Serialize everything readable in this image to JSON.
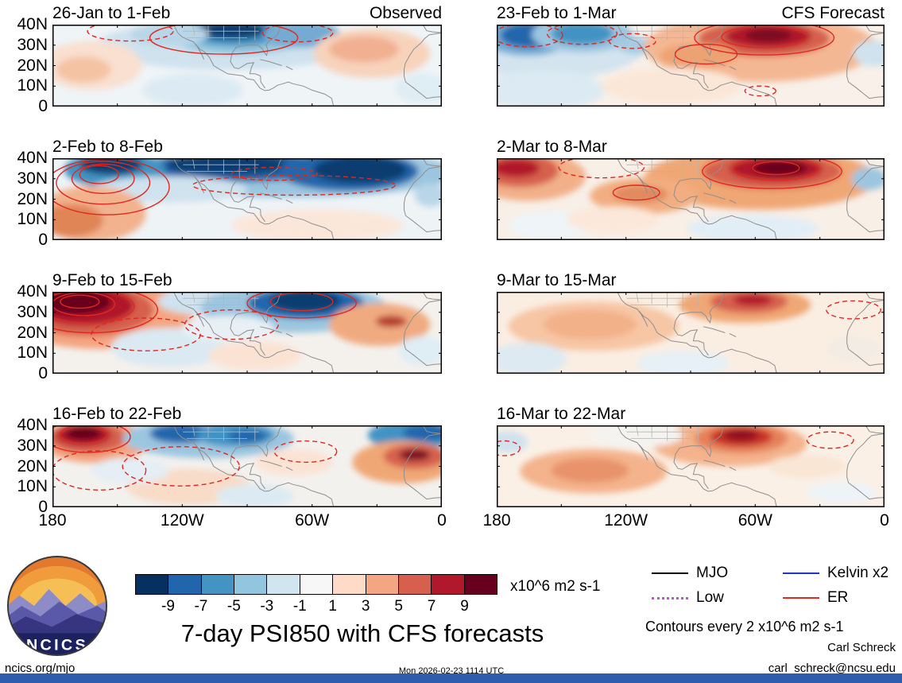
{
  "title": "7-day PSI850 with CFS forecasts",
  "logo": {
    "text": "NCICS"
  },
  "footer": {
    "site": "ncics.org/mjo",
    "timestamp": "Mon 2026-02-23 1114 UTC",
    "credit": "Carl Schreck",
    "email": "carl_schreck@ncsu.edu"
  },
  "colorbar": {
    "ticks": [
      "-9",
      "-7",
      "-5",
      "-3",
      "-1",
      "1",
      "3",
      "5",
      "7",
      "9"
    ],
    "colors": [
      "#053061",
      "#2166ac",
      "#4393c3",
      "#92c5de",
      "#d1e5f0",
      "#f7f7f7",
      "#fddbc7",
      "#f4a582",
      "#d6604d",
      "#b2182b",
      "#67001f"
    ],
    "units": "x10^6 m2 s-1"
  },
  "legend": {
    "note": "Contours every 2 x10^6 m2 s-1",
    "items": [
      {
        "label": "MJO",
        "color": "#000000",
        "style": "solid"
      },
      {
        "label": "Kelvin x2",
        "color": "#2233cc",
        "style": "solid"
      },
      {
        "label": "Low",
        "color": "#bb55cc",
        "style": "dotted"
      },
      {
        "label": "ER",
        "color": "#e02820",
        "style": "solid"
      }
    ]
  },
  "axes": {
    "y_ticks": [
      "40N",
      "30N",
      "20N",
      "10N",
      "0"
    ],
    "x_ticks": [
      "180",
      "120W",
      "60W",
      "0"
    ]
  },
  "chart_data": {
    "type": "heatmap",
    "subtype": "filled-contour anomaly maps with ER wave contours",
    "variable": "7-day PSI850 streamfunction anomaly",
    "units": "x10^6 m2 s-1",
    "levels": [
      -9,
      -7,
      -5,
      -3,
      -1,
      1,
      3,
      5,
      7,
      9
    ],
    "contour_interval": "2 x10^6 m2 s-1",
    "lat_range_deg_n": [
      0,
      40
    ],
    "lon_range": "180 to 0 (westward labels 180, 120W, 60W, 0)",
    "columns": [
      "Observed",
      "CFS Forecast"
    ],
    "panels": [
      {
        "title": "26-Jan to 1-Feb",
        "corner": "Observed",
        "col": 0,
        "row": 0,
        "bg": "#eff4f7",
        "fills": [
          [
            45,
            25,
            34,
            30,
            "#cfe2ee"
          ],
          [
            48,
            14,
            18,
            22,
            "#92c5de"
          ],
          [
            47,
            10,
            13,
            16,
            "#4393c3"
          ],
          [
            46,
            7,
            9,
            11,
            "#0b3d6f"
          ],
          [
            64,
            12,
            10,
            16,
            "#74abd3"
          ],
          [
            30,
            12,
            10,
            14,
            "#b9d6e8"
          ],
          [
            10,
            50,
            13,
            30,
            "#f9e0d0"
          ],
          [
            8,
            55,
            7,
            16,
            "#f4c3a4"
          ],
          [
            82,
            35,
            15,
            30,
            "#f8d3bc"
          ],
          [
            80,
            30,
            9,
            16,
            "#f1b091"
          ],
          [
            36,
            80,
            13,
            20,
            "#dcebf3"
          ],
          [
            95,
            78,
            7,
            18,
            "#dfedf4"
          ]
        ],
        "contours": [
          [
            44,
            16,
            19,
            20,
            0
          ],
          [
            20,
            8,
            11,
            12,
            1
          ],
          [
            63,
            10,
            9,
            11,
            1
          ]
        ]
      },
      {
        "title": "23-Feb to 1-Mar",
        "corner": "CFS Forecast",
        "col": 1,
        "row": 0,
        "bg": "#f8f0e9",
        "fills": [
          [
            14,
            28,
            24,
            38,
            "#d3e4ef"
          ],
          [
            8,
            14,
            12,
            24,
            "#74abd3"
          ],
          [
            8,
            13,
            7,
            15,
            "#2166ac"
          ],
          [
            22,
            12,
            13,
            22,
            "#9cc6e0"
          ],
          [
            22,
            11,
            8,
            14,
            "#4393c3"
          ],
          [
            37,
            26,
            6,
            10,
            "#a8cbe2"
          ],
          [
            68,
            28,
            30,
            42,
            "#f4b793"
          ],
          [
            69,
            17,
            17,
            22,
            "#d6604d"
          ],
          [
            70,
            14,
            11,
            15,
            "#b2182b"
          ],
          [
            70,
            13,
            6,
            8,
            "#7a0c22"
          ],
          [
            52,
            38,
            10,
            15,
            "#eda273"
          ],
          [
            12,
            80,
            16,
            24,
            "#dcebf3"
          ],
          [
            97,
            35,
            5,
            16,
            "#cfe2ee"
          ],
          [
            45,
            75,
            18,
            22,
            "#fbe7d8"
          ]
        ],
        "contours": [
          [
            69,
            16,
            18,
            21,
            0
          ],
          [
            69,
            15,
            11,
            13,
            0
          ],
          [
            54,
            36,
            8,
            12,
            0
          ],
          [
            8,
            13,
            9,
            14,
            1
          ],
          [
            22,
            11,
            9,
            13,
            1
          ],
          [
            35,
            20,
            6,
            9,
            1
          ],
          [
            68,
            81,
            4,
            6,
            1
          ]
        ]
      },
      {
        "title": "2-Feb to 8-Feb",
        "corner": "",
        "col": 0,
        "row": 1,
        "bg": "#eef3f6",
        "fills": [
          [
            60,
            18,
            44,
            30,
            "#9cc6e0"
          ],
          [
            48,
            11,
            24,
            18,
            "#2166ac"
          ],
          [
            45,
            8,
            16,
            12,
            "#0b3d6f"
          ],
          [
            76,
            16,
            18,
            24,
            "#2166ac"
          ],
          [
            79,
            14,
            12,
            17,
            "#0b3d6f"
          ],
          [
            16,
            14,
            13,
            22,
            "#4393c3"
          ],
          [
            15,
            8,
            8,
            12,
            "#0b3d6f"
          ],
          [
            30,
            38,
            20,
            16,
            "#cfe2ee"
          ],
          [
            10,
            68,
            14,
            34,
            "#f2b28e"
          ],
          [
            5,
            76,
            8,
            20,
            "#df8557"
          ],
          [
            68,
            82,
            22,
            20,
            "#fbe7da"
          ],
          [
            97,
            45,
            4,
            14,
            "#b9d6e8"
          ]
        ],
        "contours": [
          [
            14,
            35,
            16,
            34,
            0
          ],
          [
            13,
            30,
            12,
            26,
            0
          ],
          [
            13,
            25,
            8,
            18,
            0
          ],
          [
            12,
            20,
            5,
            11,
            0
          ],
          [
            62,
            33,
            26,
            12,
            1
          ],
          [
            57,
            19,
            11,
            8,
            1
          ]
        ]
      },
      {
        "title": "2-Mar to 8-Mar",
        "corner": "",
        "col": 1,
        "row": 1,
        "bg": "#f8efe7",
        "fills": [
          [
            8,
            22,
            15,
            30,
            "#f2b089"
          ],
          [
            6,
            15,
            10,
            20,
            "#d6604d"
          ],
          [
            5,
            12,
            6,
            11,
            "#b2182b"
          ],
          [
            68,
            25,
            30,
            38,
            "#f0a776"
          ],
          [
            71,
            16,
            18,
            22,
            "#d6604d"
          ],
          [
            72,
            13,
            12,
            15,
            "#b2182b"
          ],
          [
            73,
            12,
            7,
            9,
            "#67001f"
          ],
          [
            38,
            46,
            14,
            22,
            "#f2ae81"
          ],
          [
            37,
            44,
            7,
            11,
            "#e08a5e"
          ],
          [
            66,
            86,
            17,
            17,
            "#e2eef5"
          ],
          [
            96,
            25,
            4.5,
            14,
            "#9cc6e0"
          ],
          [
            14,
            82,
            11,
            17,
            "#eef4f8"
          ],
          [
            30,
            75,
            12,
            16,
            "#fbe8da"
          ]
        ],
        "contours": [
          [
            71,
            16,
            18,
            21,
            0
          ],
          [
            72,
            13,
            11,
            14,
            0
          ],
          [
            72,
            12,
            6,
            8,
            0
          ],
          [
            36,
            42,
            6,
            9,
            0
          ],
          [
            27,
            11,
            11,
            13,
            1
          ]
        ]
      },
      {
        "title": "9-Feb to 15-Feb",
        "corner": "",
        "col": 0,
        "row": 2,
        "bg": "#f4f1ed",
        "fills": [
          [
            12,
            28,
            24,
            42,
            "#f4a582"
          ],
          [
            9,
            22,
            17,
            32,
            "#d6604d"
          ],
          [
            8,
            17,
            13,
            24,
            "#b2182b"
          ],
          [
            6,
            12,
            9,
            16,
            "#67001f"
          ],
          [
            40,
            12,
            13,
            17,
            "#cfe2ee"
          ],
          [
            62,
            20,
            24,
            30,
            "#9cc6e0"
          ],
          [
            65,
            14,
            15,
            19,
            "#2166ac"
          ],
          [
            65,
            11,
            9,
            13,
            "#0b3d6f"
          ],
          [
            84,
            40,
            13,
            26,
            "#f0aa80"
          ],
          [
            87,
            36,
            4,
            7,
            "#b63a2a"
          ],
          [
            30,
            68,
            15,
            24,
            "#dae9f2"
          ],
          [
            52,
            78,
            12,
            18,
            "#fbe3d4"
          ],
          [
            95,
            72,
            6,
            18,
            "#dfedf4"
          ],
          [
            45,
            45,
            12,
            16,
            "#e8f0f5"
          ]
        ],
        "contours": [
          [
            10,
            22,
            17,
            28,
            0
          ],
          [
            9,
            18,
            12,
            20,
            0
          ],
          [
            8,
            15,
            8,
            14,
            0
          ],
          [
            7,
            12,
            5,
            8,
            0
          ],
          [
            64,
            14,
            14,
            18,
            0
          ],
          [
            64,
            12,
            8,
            11,
            0
          ],
          [
            24,
            52,
            14,
            20,
            1
          ],
          [
            46,
            40,
            12,
            18,
            1
          ]
        ]
      },
      {
        "title": "9-Mar to 15-Mar",
        "corner": "",
        "col": 1,
        "row": 2,
        "bg": "#faeee2",
        "fills": [
          [
            25,
            42,
            22,
            30,
            "#f7c6a5"
          ],
          [
            24,
            40,
            12,
            18,
            "#f2b189"
          ],
          [
            64,
            16,
            17,
            22,
            "#f0a776"
          ],
          [
            65,
            12,
            10,
            14,
            "#d6604d"
          ],
          [
            66,
            10,
            5,
            7,
            "#b2182b"
          ],
          [
            8,
            82,
            10,
            20,
            "#ddeaf2"
          ],
          [
            48,
            88,
            12,
            16,
            "#e6f0f6"
          ],
          [
            92,
            70,
            7,
            16,
            "#f3ece4"
          ]
        ],
        "contours": [
          [
            92,
            22,
            7,
            11,
            1
          ]
        ]
      },
      {
        "title": "16-Feb to 22-Feb",
        "corner": "",
        "col": 0,
        "row": 3,
        "bg": "#f3f1ee",
        "fills": [
          [
            11,
            20,
            14,
            26,
            "#f4a582"
          ],
          [
            9,
            15,
            10,
            19,
            "#d6604d"
          ],
          [
            8,
            12,
            7,
            13,
            "#b2182b"
          ],
          [
            8,
            10,
            4.5,
            8,
            "#67001f"
          ],
          [
            40,
            16,
            22,
            24,
            "#9cc6e0"
          ],
          [
            33,
            10,
            8,
            12,
            "#2166ac"
          ],
          [
            47,
            12,
            10,
            14,
            "#4393c3"
          ],
          [
            50,
            13,
            5,
            8,
            "#2166ac"
          ],
          [
            92,
            12,
            11,
            18,
            "#4393c3"
          ],
          [
            96,
            9,
            6,
            10,
            "#2166ac"
          ],
          [
            90,
            45,
            13,
            26,
            "#f0a776"
          ],
          [
            93,
            38,
            8,
            15,
            "#d6604d"
          ],
          [
            93,
            36,
            4,
            7,
            "#7a0c22"
          ],
          [
            35,
            75,
            16,
            22,
            "#f8dcc8"
          ],
          [
            62,
            45,
            10,
            16,
            "#fbe3d4"
          ],
          [
            52,
            86,
            10,
            14,
            "#dcebf3"
          ],
          [
            20,
            55,
            10,
            16,
            "#e4eef4"
          ]
        ],
        "contours": [
          [
            9,
            14,
            11,
            19,
            0
          ],
          [
            8,
            11,
            6,
            11,
            0
          ],
          [
            12,
            55,
            12,
            24,
            1
          ],
          [
            33,
            50,
            15,
            24,
            1
          ],
          [
            65,
            32,
            8,
            13,
            1
          ]
        ]
      },
      {
        "title": "16-Mar to 22-Mar",
        "corner": "",
        "col": 1,
        "row": 3,
        "bg": "#faf0e6",
        "fills": [
          [
            60,
            22,
            20,
            28,
            "#f4b38c"
          ],
          [
            63,
            16,
            12,
            18,
            "#e5815a"
          ],
          [
            63,
            14,
            8,
            12,
            "#c73227"
          ],
          [
            63,
            12,
            4.5,
            7,
            "#8f1024"
          ],
          [
            25,
            56,
            19,
            27,
            "#f4b38c"
          ],
          [
            24,
            55,
            10,
            15,
            "#e8936a"
          ],
          [
            36,
            12,
            12,
            15,
            "#f4f3f0"
          ],
          [
            3,
            20,
            5,
            13,
            "#cfe2ee"
          ],
          [
            89,
            82,
            9,
            13,
            "#edf3f7"
          ],
          [
            80,
            50,
            10,
            14,
            "#f9e6d4"
          ]
        ],
        "contours": [
          [
            86,
            18,
            6,
            10,
            1
          ],
          [
            2,
            28,
            4,
            9,
            1
          ]
        ]
      }
    ]
  }
}
